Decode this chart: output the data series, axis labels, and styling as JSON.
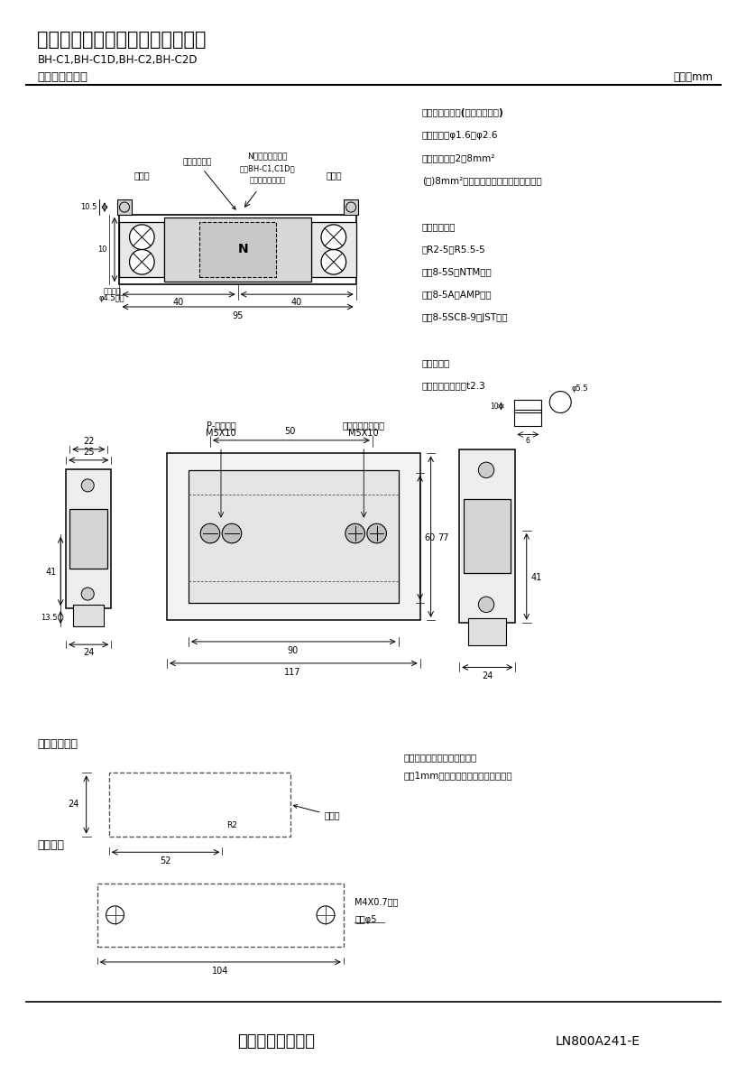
{
  "title": "三菱分電盤用ノーヒューズ遅断器",
  "subtitle": "BH-C1,BH-C1D,BH-C2,BH-C2D",
  "section_title": "標準外形寸法図",
  "unit_label": "単位：mm",
  "footer_company": "三菱電機株式会社",
  "footer_code": "LN800A241-E",
  "bg_color": "#ffffff",
  "line_color": "#000000",
  "dashed_color": "#555555",
  "ann_right": [
    [
      "適合電線サイズ(負荷端子のみ)",
      true
    ],
    [
      "　単線　：φ1.6～φ2.6",
      false
    ],
    [
      "　より線　：2～8mm²",
      false
    ],
    [
      "(注)8mm²電線は圧着端子をご使用下さい",
      false
    ],
    [
      "",
      false
    ],
    [
      "適合圧着端子",
      true
    ],
    [
      "　R2-5～R5.5-5",
      false
    ],
    [
      "　　8-5S（NTM社）",
      false
    ],
    [
      "　　8-5A（AMP社）",
      false
    ],
    [
      "　　8-5SCB-9（JST社）",
      false
    ],
    [
      "",
      false
    ],
    [
      "導帯加工図",
      true
    ],
    [
      "　最大導帯板厚　t2.3",
      false
    ]
  ]
}
